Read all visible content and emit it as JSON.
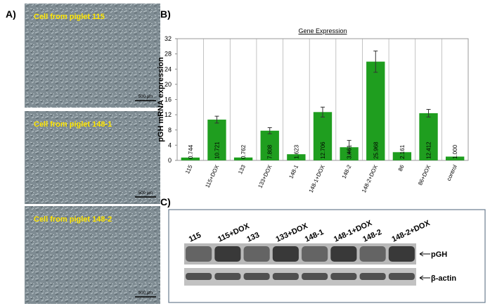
{
  "panels": {
    "a": "A)",
    "b": "B)",
    "c": "C)"
  },
  "micrographs": [
    {
      "caption": "Cell from piglet 115",
      "scale": "500 µm"
    },
    {
      "caption": "Cell from piglet 148-1",
      "scale": "500 µm"
    },
    {
      "caption": "Cell from piglet 148-2",
      "scale": "500 µm"
    }
  ],
  "chart_data": {
    "type": "bar",
    "title": "Gene Expression",
    "y_label": "pGH mRNA expression",
    "categories": [
      "115",
      "115+DOX",
      "133",
      "133+DOX",
      "148-1",
      "148-1+DOX",
      "148-2",
      "148-2+DOX",
      "86",
      "86+DOX",
      "control"
    ],
    "values": [
      0.744,
      10.721,
      0.762,
      7.808,
      1.623,
      12.706,
      3.461,
      25.968,
      2.161,
      12.412,
      1
    ],
    "value_labels": [
      "0.744",
      "10.721",
      "0.762",
      "7.808",
      "1.623",
      "12.706",
      "3.461",
      "25.968",
      "2.161",
      "12.412",
      "1.000"
    ],
    "errors": [
      null,
      0.9,
      null,
      0.8,
      null,
      1.3,
      1.8,
      2.8,
      null,
      1.0,
      null
    ],
    "color": "#1f9e1f",
    "ylim": [
      0,
      32
    ],
    "yticks": [
      0,
      4,
      8,
      12,
      16,
      20,
      24,
      28,
      32
    ],
    "grid": true
  },
  "blot": {
    "lanes": [
      "115",
      "115+DOX",
      "133",
      "133+DOX",
      "148-1",
      "148-1+DOX",
      "148-2",
      "148-2+DOX"
    ],
    "bands": [
      "pGH",
      "β-actin"
    ]
  }
}
